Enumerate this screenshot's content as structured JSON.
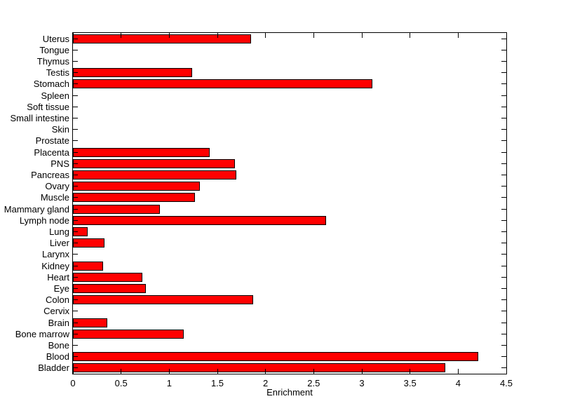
{
  "chart_data": {
    "type": "bar",
    "orientation": "horizontal",
    "title": "",
    "xlabel": "Enrichment",
    "ylabel": "",
    "xlim": [
      0,
      4.5
    ],
    "xticks": [
      0,
      0.5,
      1,
      1.5,
      2,
      2.5,
      3,
      3.5,
      4,
      4.5
    ],
    "xtick_labels": [
      "0",
      "0.5",
      "1",
      "1.5",
      "2",
      "2.5",
      "3",
      "3.5",
      "4",
      "4.5"
    ],
    "grid": false,
    "legend": "none",
    "bar_color": "#FF0000",
    "bar_edge_color": "#000000",
    "axis_color": "#000000",
    "background_color": "#FFFFFF",
    "categories_top_to_bottom": [
      "Uterus",
      "Tongue",
      "Thymus",
      "Testis",
      "Stomach",
      "Spleen",
      "Soft tissue",
      "Small intestine",
      "Skin",
      "Prostate",
      "Placenta",
      "PNS",
      "Pancreas",
      "Ovary",
      "Muscle",
      "Mammary gland",
      "Lymph node",
      "Lung",
      "Liver",
      "Larynx",
      "Kidney",
      "Heart",
      "Eye",
      "Colon",
      "Cervix",
      "Brain",
      "Bone marrow",
      "Bone",
      "Blood",
      "Bladder"
    ],
    "values": [
      1.85,
      0,
      0,
      1.24,
      3.11,
      0,
      0,
      0,
      0,
      0,
      1.42,
      1.68,
      1.7,
      1.32,
      1.27,
      0.9,
      2.63,
      0.15,
      0.33,
      0,
      0.31,
      0.72,
      0.76,
      1.87,
      0,
      0.36,
      1.15,
      0,
      4.21,
      3.87
    ]
  }
}
